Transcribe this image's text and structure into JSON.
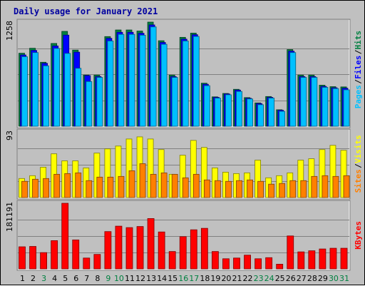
{
  "chart_data": {
    "type": "bar",
    "title": "Daily usage for January 2021",
    "days": [
      "1",
      "2",
      "3",
      "4",
      "5",
      "6",
      "7",
      "8",
      "9",
      "10",
      "11",
      "12",
      "13",
      "14",
      "15",
      "16",
      "17",
      "18",
      "19",
      "20",
      "21",
      "22",
      "23",
      "24",
      "25",
      "26",
      "27",
      "28",
      "29",
      "30",
      "31"
    ],
    "weekend_days": [
      "3",
      "9",
      "10",
      "16",
      "17",
      "23",
      "24",
      "30",
      "31"
    ],
    "panels": [
      {
        "id": "hits-files-pages",
        "max_label": "1258",
        "ylim": [
          0,
          1258
        ],
        "legend": [
          "Pages",
          "Files",
          "Hits"
        ],
        "series": [
          {
            "name": "Hits",
            "color": "#008040",
            "values": [
              882,
              942,
              773,
              1000,
              1146,
              920,
              618,
              618,
              1083,
              1163,
              1163,
              1150,
              1258,
              1033,
              618,
              1074,
              1125,
              520,
              355,
              396,
              446,
              346,
              282,
              359,
              199,
              926,
              618,
              618,
              496,
              478,
              475
            ]
          },
          {
            "name": "Files",
            "color": "#0000ff",
            "values": [
              861,
              916,
              760,
              970,
              1101,
              895,
              612,
              600,
              1062,
              1135,
              1135,
              1123,
              1224,
              1012,
              600,
              1052,
              1106,
              507,
              349,
              390,
              437,
              338,
              274,
              349,
              193,
              907,
              600,
              600,
              481,
              465,
              459
            ]
          },
          {
            "name": "Pages",
            "color": "#00c0ff",
            "values": [
              840,
              890,
              730,
              940,
              880,
              700,
              540,
              590,
              1030,
              1110,
              1110,
              1100,
              1200,
              990,
              590,
              1030,
              1085,
              490,
              340,
              380,
              420,
              330,
              260,
              340,
              180,
              890,
              590,
              590,
              470,
              455,
              440
            ]
          }
        ]
      },
      {
        "id": "visits-sites",
        "max_label": "93",
        "ylim": [
          0,
          93
        ],
        "legend": [
          "Sites",
          "Visits"
        ],
        "series": [
          {
            "name": "Visits",
            "color": "#ffff00",
            "values": [
              27,
              31,
              43,
              62,
              52,
              52,
              42,
              63,
              69,
              73,
              83,
              86,
              83,
              68,
              33,
              60,
              81,
              71,
              42,
              36,
              34,
              35,
              53,
              28,
              31,
              35,
              53,
              55,
              68,
              74,
              67
            ]
          },
          {
            "name": "Sites",
            "color": "#ff8000",
            "values": [
              23,
              26,
              27,
              33,
              34,
              35,
              24,
              29,
              29,
              30,
              38,
              48,
              33,
              35,
              33,
              28,
              33,
              25,
              24,
              23,
              24,
              25,
              23,
              19,
              20,
              24,
              24,
              30,
              31,
              30,
              31
            ]
          }
        ]
      },
      {
        "id": "kbytes",
        "max_label": "181191",
        "ylim": [
          0,
          181191
        ],
        "legend": [
          "KBytes"
        ],
        "series": [
          {
            "name": "KBytes",
            "color": "#ff0000",
            "values": [
              61000,
              62000,
              45000,
              78000,
              181191,
              80000,
              30000,
              40000,
              103000,
              118000,
              114000,
              117000,
              139000,
              102000,
              48000,
              89000,
              108000,
              112000,
              48000,
              28000,
              30000,
              38000,
              28000,
              31000,
              13000,
              91000,
              47000,
              50000,
              55000,
              57000,
              57000
            ]
          }
        ]
      }
    ]
  }
}
